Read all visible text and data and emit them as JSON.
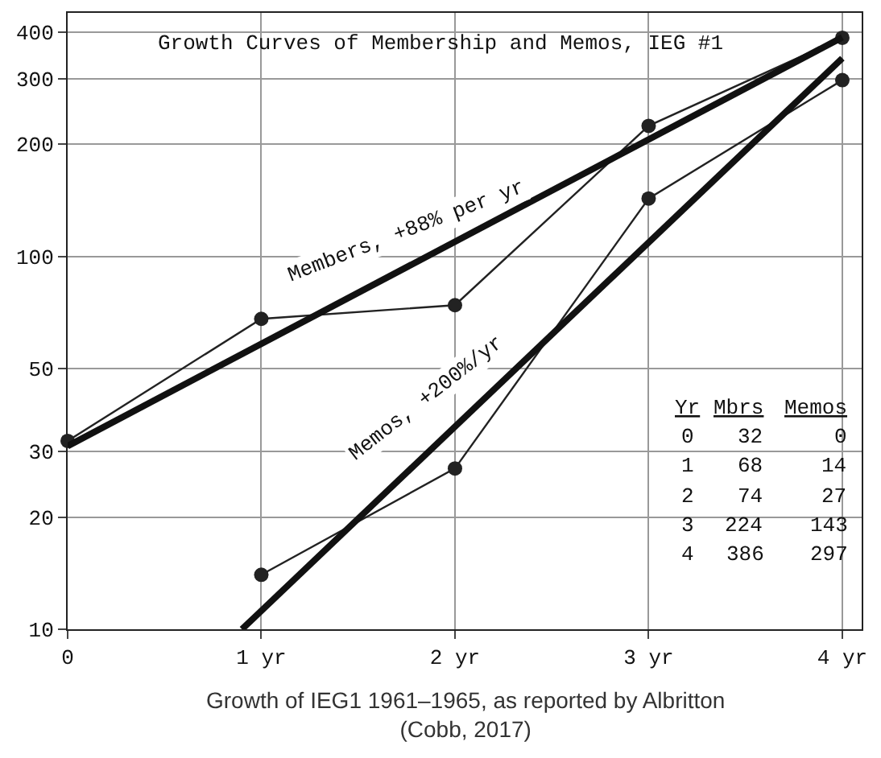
{
  "chart_data": {
    "type": "line",
    "title": "Growth Curves of Membership and Memos, IEG #1",
    "x": [
      0,
      1,
      2,
      3,
      4
    ],
    "series": [
      {
        "color": "#222222",
        "marker": "circle",
        "values": [
          32,
          68,
          74,
          224,
          386
        ]
      },
      {
        "color": "#222222",
        "marker": "circle",
        "values": [
          null,
          14,
          27,
          143,
          297
        ]
      },
      {
        "color": "#111111",
        "marker": "none",
        "x": [
          0,
          4
        ],
        "values": [
          31,
          387
        ]
      },
      {
        "color": "#111111",
        "marker": "none",
        "x": [
          0.9,
          4
        ],
        "values": [
          10,
          340
        ]
      }
    ],
    "annotations": [
      "Members, +88% per yr",
      "Memos, +200%/yr",
      "Yr",
      "Mbrs",
      "Memos",
      "0",
      "32",
      "0",
      "1",
      "68",
      "14",
      "2",
      "74",
      "27",
      "3",
      "224",
      "143",
      "4",
      "386",
      "297",
      "Growth of IEG1 1961–1965, as reported by Albritton (Cobb, 2017)"
    ],
    "log": "y",
    "grid": true,
    "xlim": [
      0,
      4.1
    ],
    "xticks": [
      0,
      {
        "value": 1,
        "label": "1 yr"
      },
      {
        "value": 2,
        "label": "2 yr"
      },
      {
        "value": 3,
        "label": "3 yr"
      },
      {
        "value": 4,
        "label": "4 yr"
      }
    ],
    "ylim": [
      10,
      450
    ],
    "yticks": [
      10,
      20,
      30,
      50,
      100,
      200,
      300,
      400
    ]
  }
}
